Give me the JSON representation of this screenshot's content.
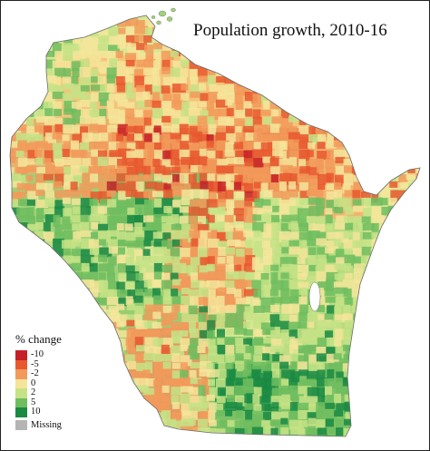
{
  "title": "Population growth, 2010-16",
  "legend": {
    "title": "% change",
    "ticks": [
      "-10",
      "-5",
      "-2",
      "0",
      "2",
      "5",
      "10"
    ],
    "missing_label": "Missing",
    "colors": {
      "neg10": "#c62026",
      "neg5": "#e8582f",
      "neg2": "#f29a5b",
      "zero": "#f4e59a",
      "pos2": "#c5e386",
      "pos5": "#6fbd5f",
      "pos10": "#1a8a43",
      "missing": "#b4b4b4"
    }
  },
  "map_regions": [
    {
      "name": "northwest",
      "level": "mixed-green"
    },
    {
      "name": "north-central",
      "level": "decline"
    },
    {
      "name": "northeast",
      "level": "decline"
    },
    {
      "name": "central",
      "level": "mixed"
    },
    {
      "name": "southwest",
      "level": "mixed-decline"
    },
    {
      "name": "south-central",
      "level": "growth"
    },
    {
      "name": "southeast",
      "level": "growth"
    }
  ]
}
